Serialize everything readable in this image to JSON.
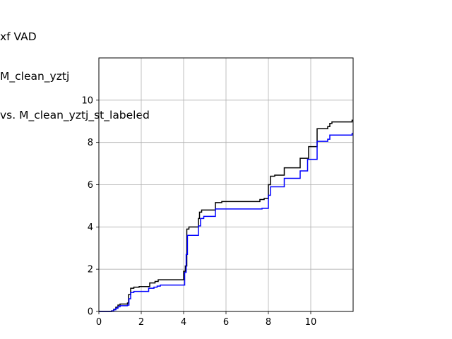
{
  "title_lines": [
    "xf VAD",
    "M_clean_yztj",
    "vs. M_clean_yztj_st_labeled"
  ],
  "chart_data": {
    "type": "line",
    "title": "xf VAD\nM_clean_yztj\nvs. M_clean_yztj_st_labeled",
    "xlabel": "",
    "ylabel": "",
    "xlim": [
      0,
      12
    ],
    "ylim": [
      0,
      12
    ],
    "xticks": [
      0,
      2,
      4,
      6,
      8,
      10
    ],
    "yticks": [
      0,
      2,
      4,
      6,
      8,
      10
    ],
    "grid": true,
    "series": [
      {
        "color": "#000000",
        "step": true,
        "points": [
          [
            0,
            0
          ],
          [
            0.6,
            0.03
          ],
          [
            0.7,
            0.1
          ],
          [
            0.8,
            0.2
          ],
          [
            0.9,
            0.3
          ],
          [
            1.0,
            0.35
          ],
          [
            1.35,
            0.4
          ],
          [
            1.4,
            0.8
          ],
          [
            1.5,
            1.1
          ],
          [
            1.65,
            1.15
          ],
          [
            1.9,
            1.18
          ],
          [
            2.4,
            1.35
          ],
          [
            2.65,
            1.42
          ],
          [
            2.8,
            1.5
          ],
          [
            4.0,
            1.9
          ],
          [
            4.08,
            2.15
          ],
          [
            4.15,
            3.9
          ],
          [
            4.25,
            4.0
          ],
          [
            4.7,
            4.4
          ],
          [
            4.75,
            4.7
          ],
          [
            4.85,
            4.8
          ],
          [
            5.5,
            5.15
          ],
          [
            5.8,
            5.2
          ],
          [
            7.6,
            5.3
          ],
          [
            7.8,
            5.35
          ],
          [
            8.0,
            6.0
          ],
          [
            8.1,
            6.4
          ],
          [
            8.3,
            6.45
          ],
          [
            8.75,
            6.8
          ],
          [
            9.5,
            7.25
          ],
          [
            9.9,
            7.8
          ],
          [
            10.3,
            8.65
          ],
          [
            10.8,
            8.75
          ],
          [
            10.9,
            8.9
          ],
          [
            11.0,
            8.97
          ],
          [
            11.95,
            9.05
          ],
          [
            12,
            9.05
          ]
        ]
      },
      {
        "color": "#0000ff",
        "step": true,
        "points": [
          [
            0,
            0
          ],
          [
            0.6,
            0.02
          ],
          [
            0.7,
            0.08
          ],
          [
            0.8,
            0.15
          ],
          [
            0.9,
            0.22
          ],
          [
            1.0,
            0.27
          ],
          [
            1.35,
            0.3
          ],
          [
            1.42,
            0.6
          ],
          [
            1.5,
            0.9
          ],
          [
            1.65,
            0.95
          ],
          [
            2.35,
            1.1
          ],
          [
            2.6,
            1.15
          ],
          [
            2.75,
            1.2
          ],
          [
            2.9,
            1.25
          ],
          [
            4.05,
            1.85
          ],
          [
            4.12,
            2.7
          ],
          [
            4.18,
            3.6
          ],
          [
            4.7,
            4.05
          ],
          [
            4.8,
            4.4
          ],
          [
            4.95,
            4.5
          ],
          [
            5.5,
            4.85
          ],
          [
            7.7,
            4.88
          ],
          [
            8.0,
            5.5
          ],
          [
            8.1,
            5.9
          ],
          [
            8.75,
            6.3
          ],
          [
            9.5,
            6.65
          ],
          [
            9.85,
            7.2
          ],
          [
            10.3,
            8.05
          ],
          [
            10.8,
            8.15
          ],
          [
            10.9,
            8.35
          ],
          [
            11.95,
            8.42
          ],
          [
            12,
            8.42
          ]
        ]
      }
    ]
  }
}
